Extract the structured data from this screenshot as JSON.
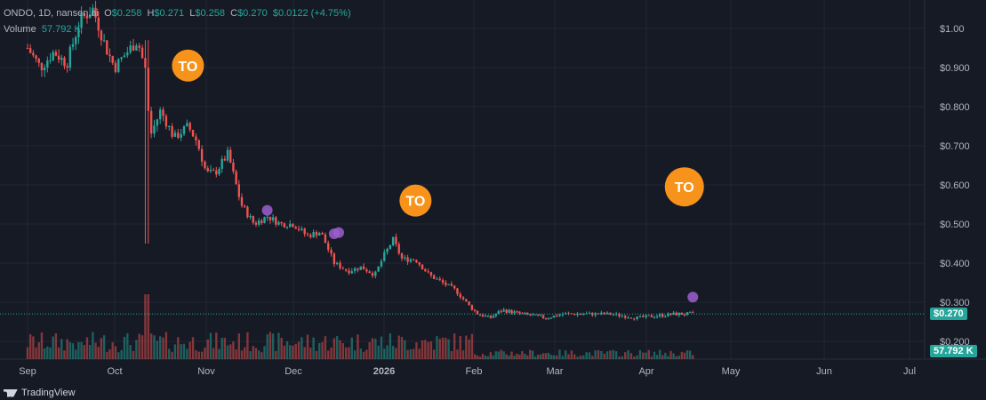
{
  "header": {
    "symbol": "ONDO, 1D, nansen.ai",
    "open_label": "O",
    "open": "$0.258",
    "high_label": "H",
    "high": "$0.271",
    "low_label": "L",
    "low": "$0.258",
    "close_label": "C",
    "close": "$0.270",
    "change": "$0.0122 (+4.75%)",
    "volume_label": "Volume",
    "volume_value": "57.792 K"
  },
  "price_badge": "$0.270",
  "volume_badge": "57.792 K",
  "branding": "TradingView",
  "colors": {
    "up": "#26a69a",
    "down": "#ef5350",
    "bg": "#161a25",
    "grid": "#232733",
    "marker": "#f7931a",
    "dot": "#9c5fcf"
  },
  "chart_data": {
    "type": "candlestick",
    "y_ticks": [
      "$1.00",
      "$0.900",
      "$0.800",
      "$0.700",
      "$0.600",
      "$0.500",
      "$0.400",
      "$0.300",
      "$0.200"
    ],
    "y_tick_values": [
      1.0,
      0.9,
      0.8,
      0.7,
      0.6,
      0.5,
      0.4,
      0.3,
      0.2
    ],
    "x_ticks": [
      "Sep",
      "Oct",
      "Nov",
      "Dec",
      "2026",
      "Feb",
      "Mar",
      "Apr",
      "May",
      "Jun",
      "Jul"
    ],
    "ylim": [
      0.15,
      1.07
    ],
    "current_price": 0.27,
    "close_path": [
      {
        "m": 0.0,
        "p": 0.95
      },
      {
        "m": 0.15,
        "p": 0.9
      },
      {
        "m": 0.3,
        "p": 0.94
      },
      {
        "m": 0.45,
        "p": 0.91
      },
      {
        "m": 0.6,
        "p": 1.02
      },
      {
        "m": 0.75,
        "p": 1.05
      },
      {
        "m": 0.9,
        "p": 0.95
      },
      {
        "m": 1.0,
        "p": 0.9
      },
      {
        "m": 1.1,
        "p": 0.93
      },
      {
        "m": 1.25,
        "p": 0.97
      },
      {
        "m": 1.35,
        "p": 0.88
      },
      {
        "m": 1.38,
        "p": 0.72
      },
      {
        "m": 1.5,
        "p": 0.79
      },
      {
        "m": 1.65,
        "p": 0.72
      },
      {
        "m": 1.8,
        "p": 0.75
      },
      {
        "m": 1.9,
        "p": 0.71
      },
      {
        "m": 2.0,
        "p": 0.63
      },
      {
        "m": 2.1,
        "p": 0.63
      },
      {
        "m": 2.25,
        "p": 0.68
      },
      {
        "m": 2.4,
        "p": 0.55
      },
      {
        "m": 2.55,
        "p": 0.5
      },
      {
        "m": 2.7,
        "p": 0.52
      },
      {
        "m": 2.85,
        "p": 0.5
      },
      {
        "m": 3.0,
        "p": 0.5
      },
      {
        "m": 3.15,
        "p": 0.47
      },
      {
        "m": 3.3,
        "p": 0.48
      },
      {
        "m": 3.45,
        "p": 0.4
      },
      {
        "m": 3.6,
        "p": 0.38
      },
      {
        "m": 3.75,
        "p": 0.39
      },
      {
        "m": 3.9,
        "p": 0.37
      },
      {
        "m": 4.0,
        "p": 0.42
      },
      {
        "m": 4.1,
        "p": 0.46
      },
      {
        "m": 4.2,
        "p": 0.41
      },
      {
        "m": 4.35,
        "p": 0.41
      },
      {
        "m": 4.5,
        "p": 0.37
      },
      {
        "m": 4.65,
        "p": 0.35
      },
      {
        "m": 4.8,
        "p": 0.33
      },
      {
        "m": 4.95,
        "p": 0.29
      },
      {
        "m": 5.05,
        "p": 0.27
      },
      {
        "m": 5.2,
        "p": 0.26
      },
      {
        "m": 5.35,
        "p": 0.28
      },
      {
        "m": 5.6,
        "p": 0.27
      },
      {
        "m": 5.9,
        "p": 0.26
      },
      {
        "m": 6.1,
        "p": 0.27
      },
      {
        "m": 6.4,
        "p": 0.27
      },
      {
        "m": 6.6,
        "p": 0.27
      },
      {
        "m": 6.9,
        "p": 0.26
      },
      {
        "m": 7.1,
        "p": 0.265
      },
      {
        "m": 7.35,
        "p": 0.27
      },
      {
        "m": 7.55,
        "p": 0.27
      }
    ],
    "spike": {
      "m": 1.35,
      "high": 0.97,
      "low": 0.45
    },
    "volume_spikes": [
      {
        "m": 1.35,
        "v": 0.95
      },
      {
        "m": 1.3,
        "v": 0.35
      },
      {
        "m": 0.6,
        "v": 0.25
      }
    ],
    "event_markers": [
      {
        "label": "TO",
        "m": 1.8,
        "p": 0.905
      },
      {
        "label": "TO",
        "m": 4.35,
        "p": 0.56
      },
      {
        "label": "TO",
        "m": 7.45,
        "p": 0.595
      }
    ],
    "dot_markers": [
      {
        "m": 2.7,
        "p": 0.535
      },
      {
        "m": 3.45,
        "p": 0.475
      },
      {
        "m": 3.5,
        "p": 0.478
      },
      {
        "m": 7.55,
        "p": 0.313
      }
    ]
  }
}
